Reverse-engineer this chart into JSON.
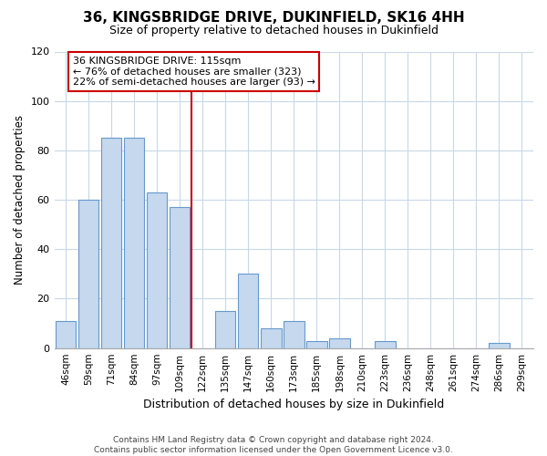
{
  "title": "36, KINGSBRIDGE DRIVE, DUKINFIELD, SK16 4HH",
  "subtitle": "Size of property relative to detached houses in Dukinfield",
  "xlabel": "Distribution of detached houses by size in Dukinfield",
  "ylabel": "Number of detached properties",
  "bar_labels": [
    "46sqm",
    "59sqm",
    "71sqm",
    "84sqm",
    "97sqm",
    "109sqm",
    "122sqm",
    "135sqm",
    "147sqm",
    "160sqm",
    "173sqm",
    "185sqm",
    "198sqm",
    "210sqm",
    "223sqm",
    "236sqm",
    "248sqm",
    "261sqm",
    "274sqm",
    "286sqm",
    "299sqm"
  ],
  "bar_values": [
    11,
    60,
    85,
    85,
    63,
    57,
    0,
    15,
    30,
    8,
    11,
    3,
    4,
    0,
    3,
    0,
    0,
    0,
    0,
    2,
    0
  ],
  "bar_color": "#c5d8ee",
  "bar_edge_color": "#6699cc",
  "vline_x_idx": 5.5,
  "vline_color": "#cc0000",
  "annotation_title": "36 KINGSBRIDGE DRIVE: 115sqm",
  "annotation_line1": "← 76% of detached houses are smaller (323)",
  "annotation_line2": "22% of semi-detached houses are larger (93) →",
  "annotation_box_color": "#ffffff",
  "annotation_box_edge": "#cc0000",
  "ylim": [
    0,
    120
  ],
  "yticks": [
    0,
    20,
    40,
    60,
    80,
    100,
    120
  ],
  "footer1": "Contains HM Land Registry data © Crown copyright and database right 2024.",
  "footer2": "Contains public sector information licensed under the Open Government Licence v3.0.",
  "bg_color": "#ffffff",
  "grid_color": "#c8d8e8"
}
